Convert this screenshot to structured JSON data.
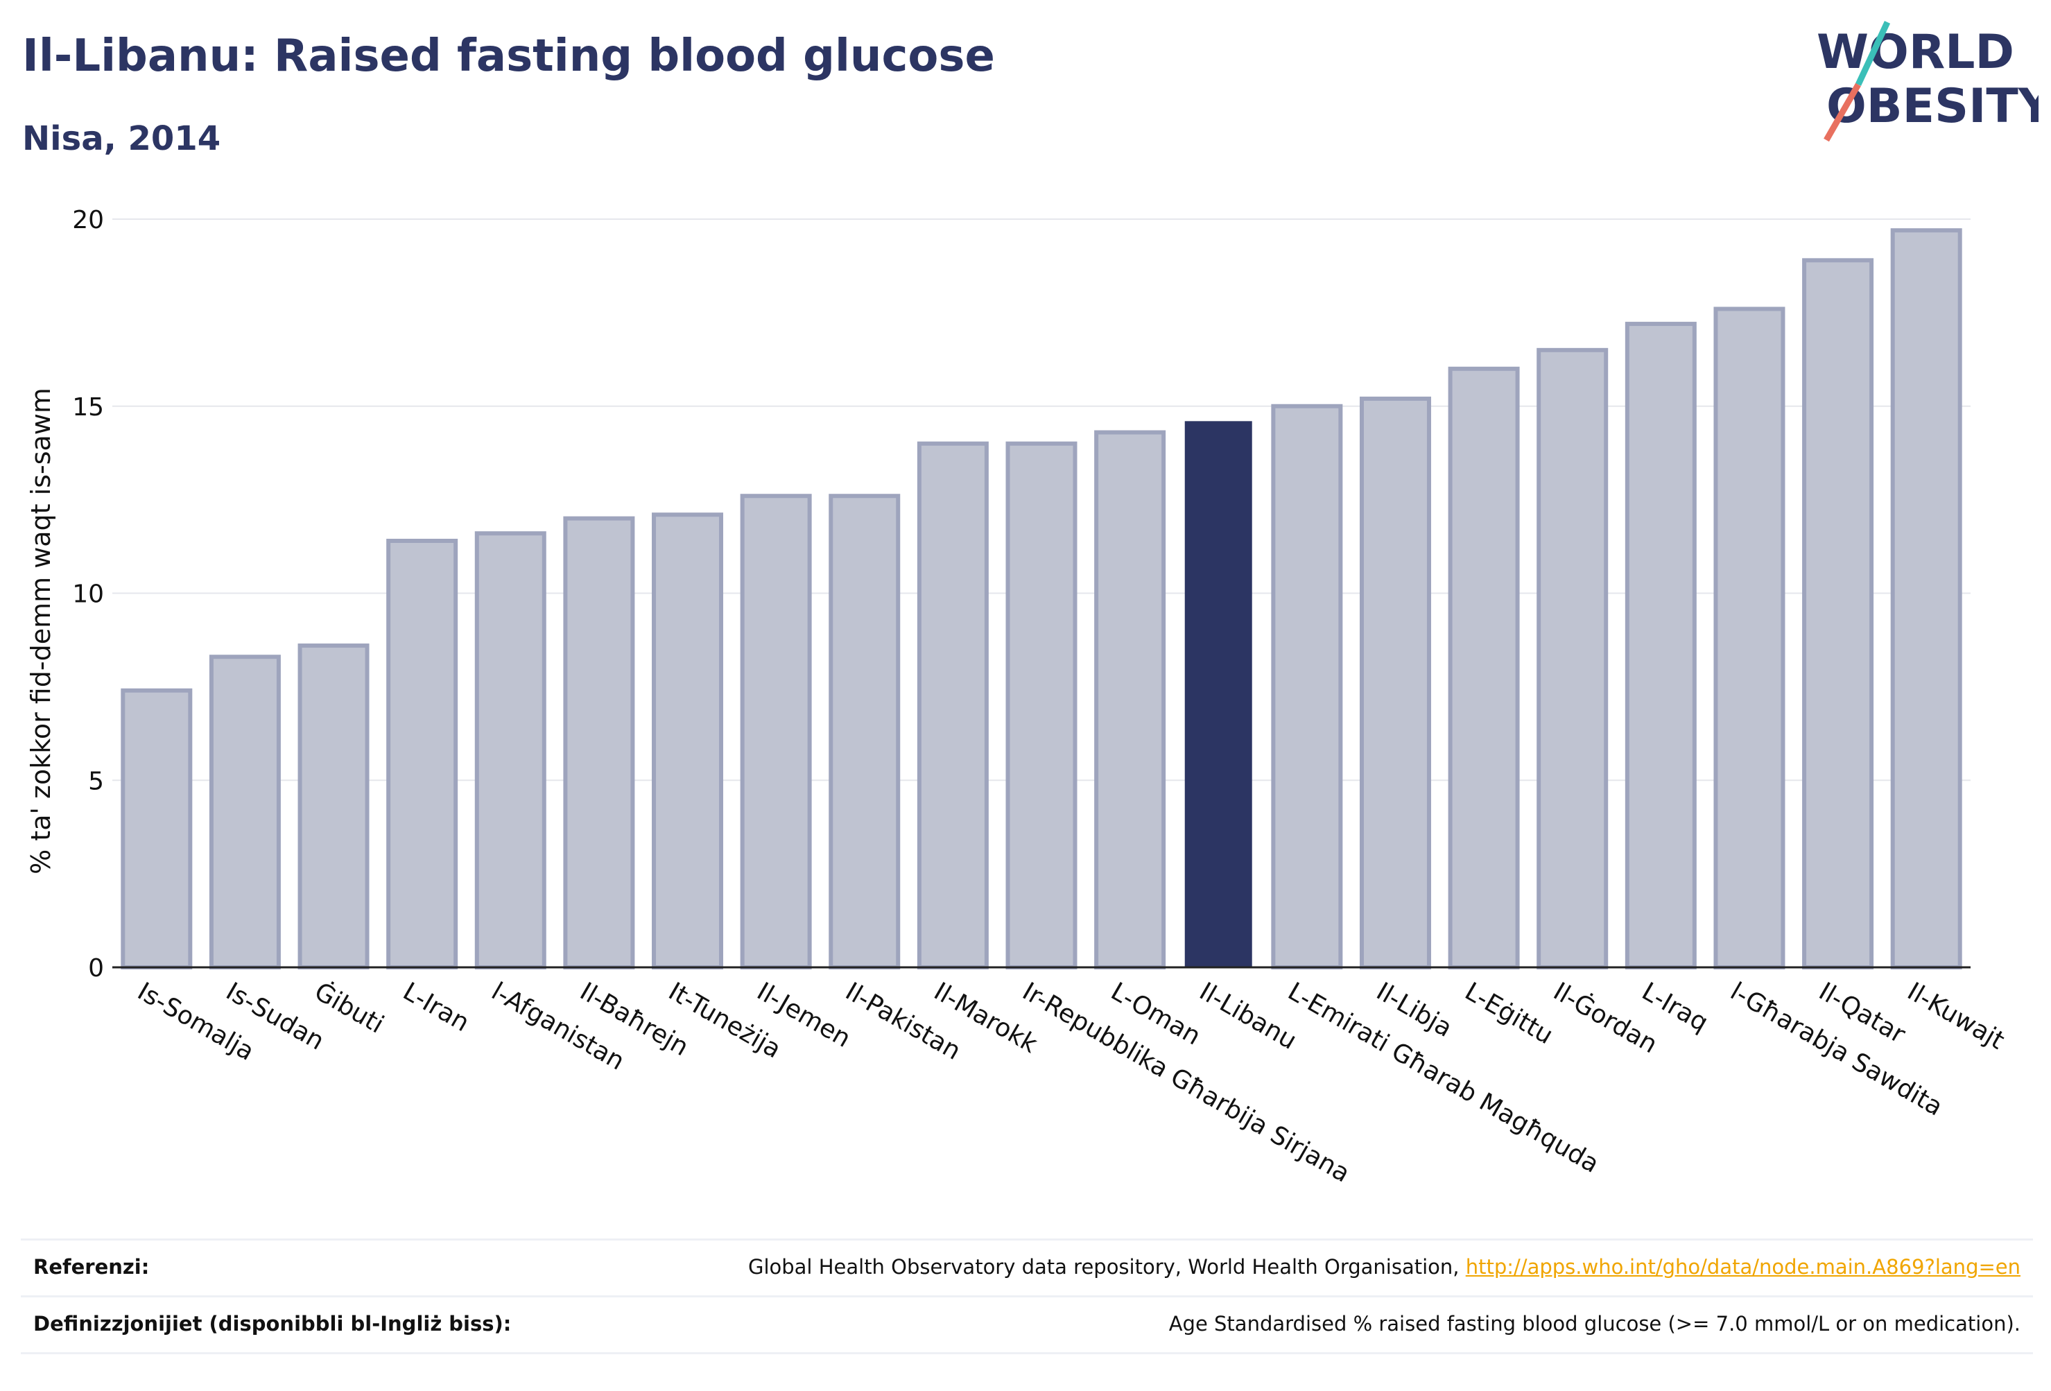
{
  "header": {
    "title": "Il-Libanu: Raised fasting blood glucose",
    "subtitle": "Nisa, 2014"
  },
  "logo": {
    "line1": "WORLD",
    "line2": "OBESITY",
    "colors": {
      "text": "#2c3563",
      "slash_teal": "#3bbfb8",
      "slash_coral": "#e8705f"
    }
  },
  "colors": {
    "bar": "#bfc3d1",
    "bar_stroke": "#9ea4bd",
    "highlight": "#2c3563",
    "grid": "#e6e7ec",
    "axis": "#222222",
    "link": "#f0a500"
  },
  "chart_data": {
    "type": "bar",
    "title": "Il-Libanu: Raised fasting blood glucose",
    "subtitle": "Nisa, 2014",
    "ylabel": "% ta' zokkor fid-demm waqt is-sawm",
    "xlabel": "",
    "ylim": [
      0,
      20
    ],
    "yticks": [
      0,
      5,
      10,
      15,
      20
    ],
    "grid": true,
    "highlight": "Il-Libanu",
    "categories": [
      "Is-Somalja",
      "Is-Sudan",
      "Ġibuti",
      "L-Iran",
      "l-Afganistan",
      "Il-Baħrejn",
      "It-Tuneżija",
      "Il-Jemen",
      "Il-Pakistan",
      "Il-Marokk",
      "Ir-Repubblika Għarbija Sirjana",
      "L-Oman",
      "Il-Libanu",
      "L-Emirati Għarab Magħquda",
      "Il-Libja",
      "L-Eġittu",
      "Il-Ġordan",
      "L-Iraq",
      "l-Għarabja Sawdita",
      "Il-Qatar",
      "Il-Kuwajt"
    ],
    "values": [
      7.4,
      8.3,
      8.6,
      11.4,
      11.6,
      12.0,
      12.1,
      12.6,
      12.6,
      14.0,
      14.0,
      14.3,
      14.6,
      15.0,
      15.2,
      16.0,
      16.5,
      17.2,
      17.6,
      18.9,
      19.7
    ]
  },
  "footer": {
    "reference_label": "Referenzi:",
    "reference_text": "Global Health Observatory data repository, World Health Organisation, ",
    "reference_link": "http://apps.who.int/gho/data/node.main.A869?lang=en",
    "definition_label": "Definizzjonijiet (disponibbli bl-Ingliż biss):",
    "definition_text": "Age Standardised % raised fasting blood glucose (>= 7.0 mmol/L or on medication)."
  }
}
